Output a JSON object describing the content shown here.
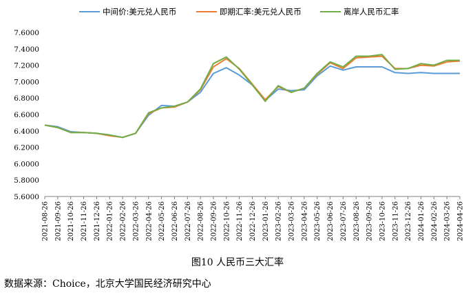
{
  "caption": "图10 人民币三大汇率",
  "source": "数据来源：Choice，北京大学国民经济研究中心",
  "chart_data": {
    "type": "line",
    "ylim": [
      5.6,
      7.6
    ],
    "yticks": [
      "5.6000",
      "5.8000",
      "6.0000",
      "6.2000",
      "6.4000",
      "6.6000",
      "6.8000",
      "7.0000",
      "7.2000",
      "7.4000",
      "7.6000"
    ],
    "x": [
      "2021-08-26",
      "2021-09-26",
      "2021-10-26",
      "2021-11-26",
      "2021-12-26",
      "2022-01-26",
      "2022-02-26",
      "2022-03-26",
      "2022-04-26",
      "2022-05-26",
      "2022-06-26",
      "2022-07-26",
      "2022-08-26",
      "2022-09-26",
      "2022-10-26",
      "2022-11-26",
      "2022-12-26",
      "2023-01-26",
      "2023-02-26",
      "2023-03-26",
      "2023-04-26",
      "2023-05-26",
      "2023-06-26",
      "2023-07-26",
      "2023-08-26",
      "2023-09-26",
      "2023-10-26",
      "2023-11-26",
      "2023-12-26",
      "2024-01-26",
      "2024-02-26",
      "2024-03-26",
      "2024-04-26"
    ],
    "legend_position": "top",
    "series": [
      {
        "name": "中间价:美元兑人民币",
        "color": "#5b9bd5",
        "values": [
          6.47,
          6.45,
          6.39,
          6.38,
          6.37,
          6.35,
          6.32,
          6.37,
          6.59,
          6.71,
          6.7,
          6.75,
          6.87,
          7.1,
          7.17,
          7.08,
          6.96,
          6.77,
          6.91,
          6.89,
          6.9,
          7.07,
          7.19,
          7.14,
          7.18,
          7.18,
          7.18,
          7.11,
          7.1,
          7.11,
          7.1,
          7.1,
          7.1
        ]
      },
      {
        "name": "即期汇率:美元兑人民币",
        "color": "#ed7d31",
        "values": [
          6.47,
          6.44,
          6.38,
          6.38,
          6.37,
          6.34,
          6.32,
          6.37,
          6.61,
          6.68,
          6.69,
          6.75,
          6.9,
          7.18,
          7.28,
          7.16,
          6.97,
          6.78,
          6.94,
          6.87,
          6.92,
          7.09,
          7.23,
          7.16,
          7.29,
          7.3,
          7.31,
          7.16,
          7.16,
          7.2,
          7.19,
          7.24,
          7.25
        ]
      },
      {
        "name": "离岸人民币汇率",
        "color": "#70ad47",
        "values": [
          6.47,
          6.44,
          6.38,
          6.38,
          6.37,
          6.35,
          6.32,
          6.37,
          6.62,
          6.68,
          6.7,
          6.75,
          6.91,
          7.22,
          7.3,
          7.15,
          6.96,
          6.76,
          6.95,
          6.87,
          6.92,
          7.1,
          7.24,
          7.18,
          7.31,
          7.31,
          7.33,
          7.15,
          7.16,
          7.22,
          7.2,
          7.26,
          7.26
        ]
      }
    ]
  }
}
